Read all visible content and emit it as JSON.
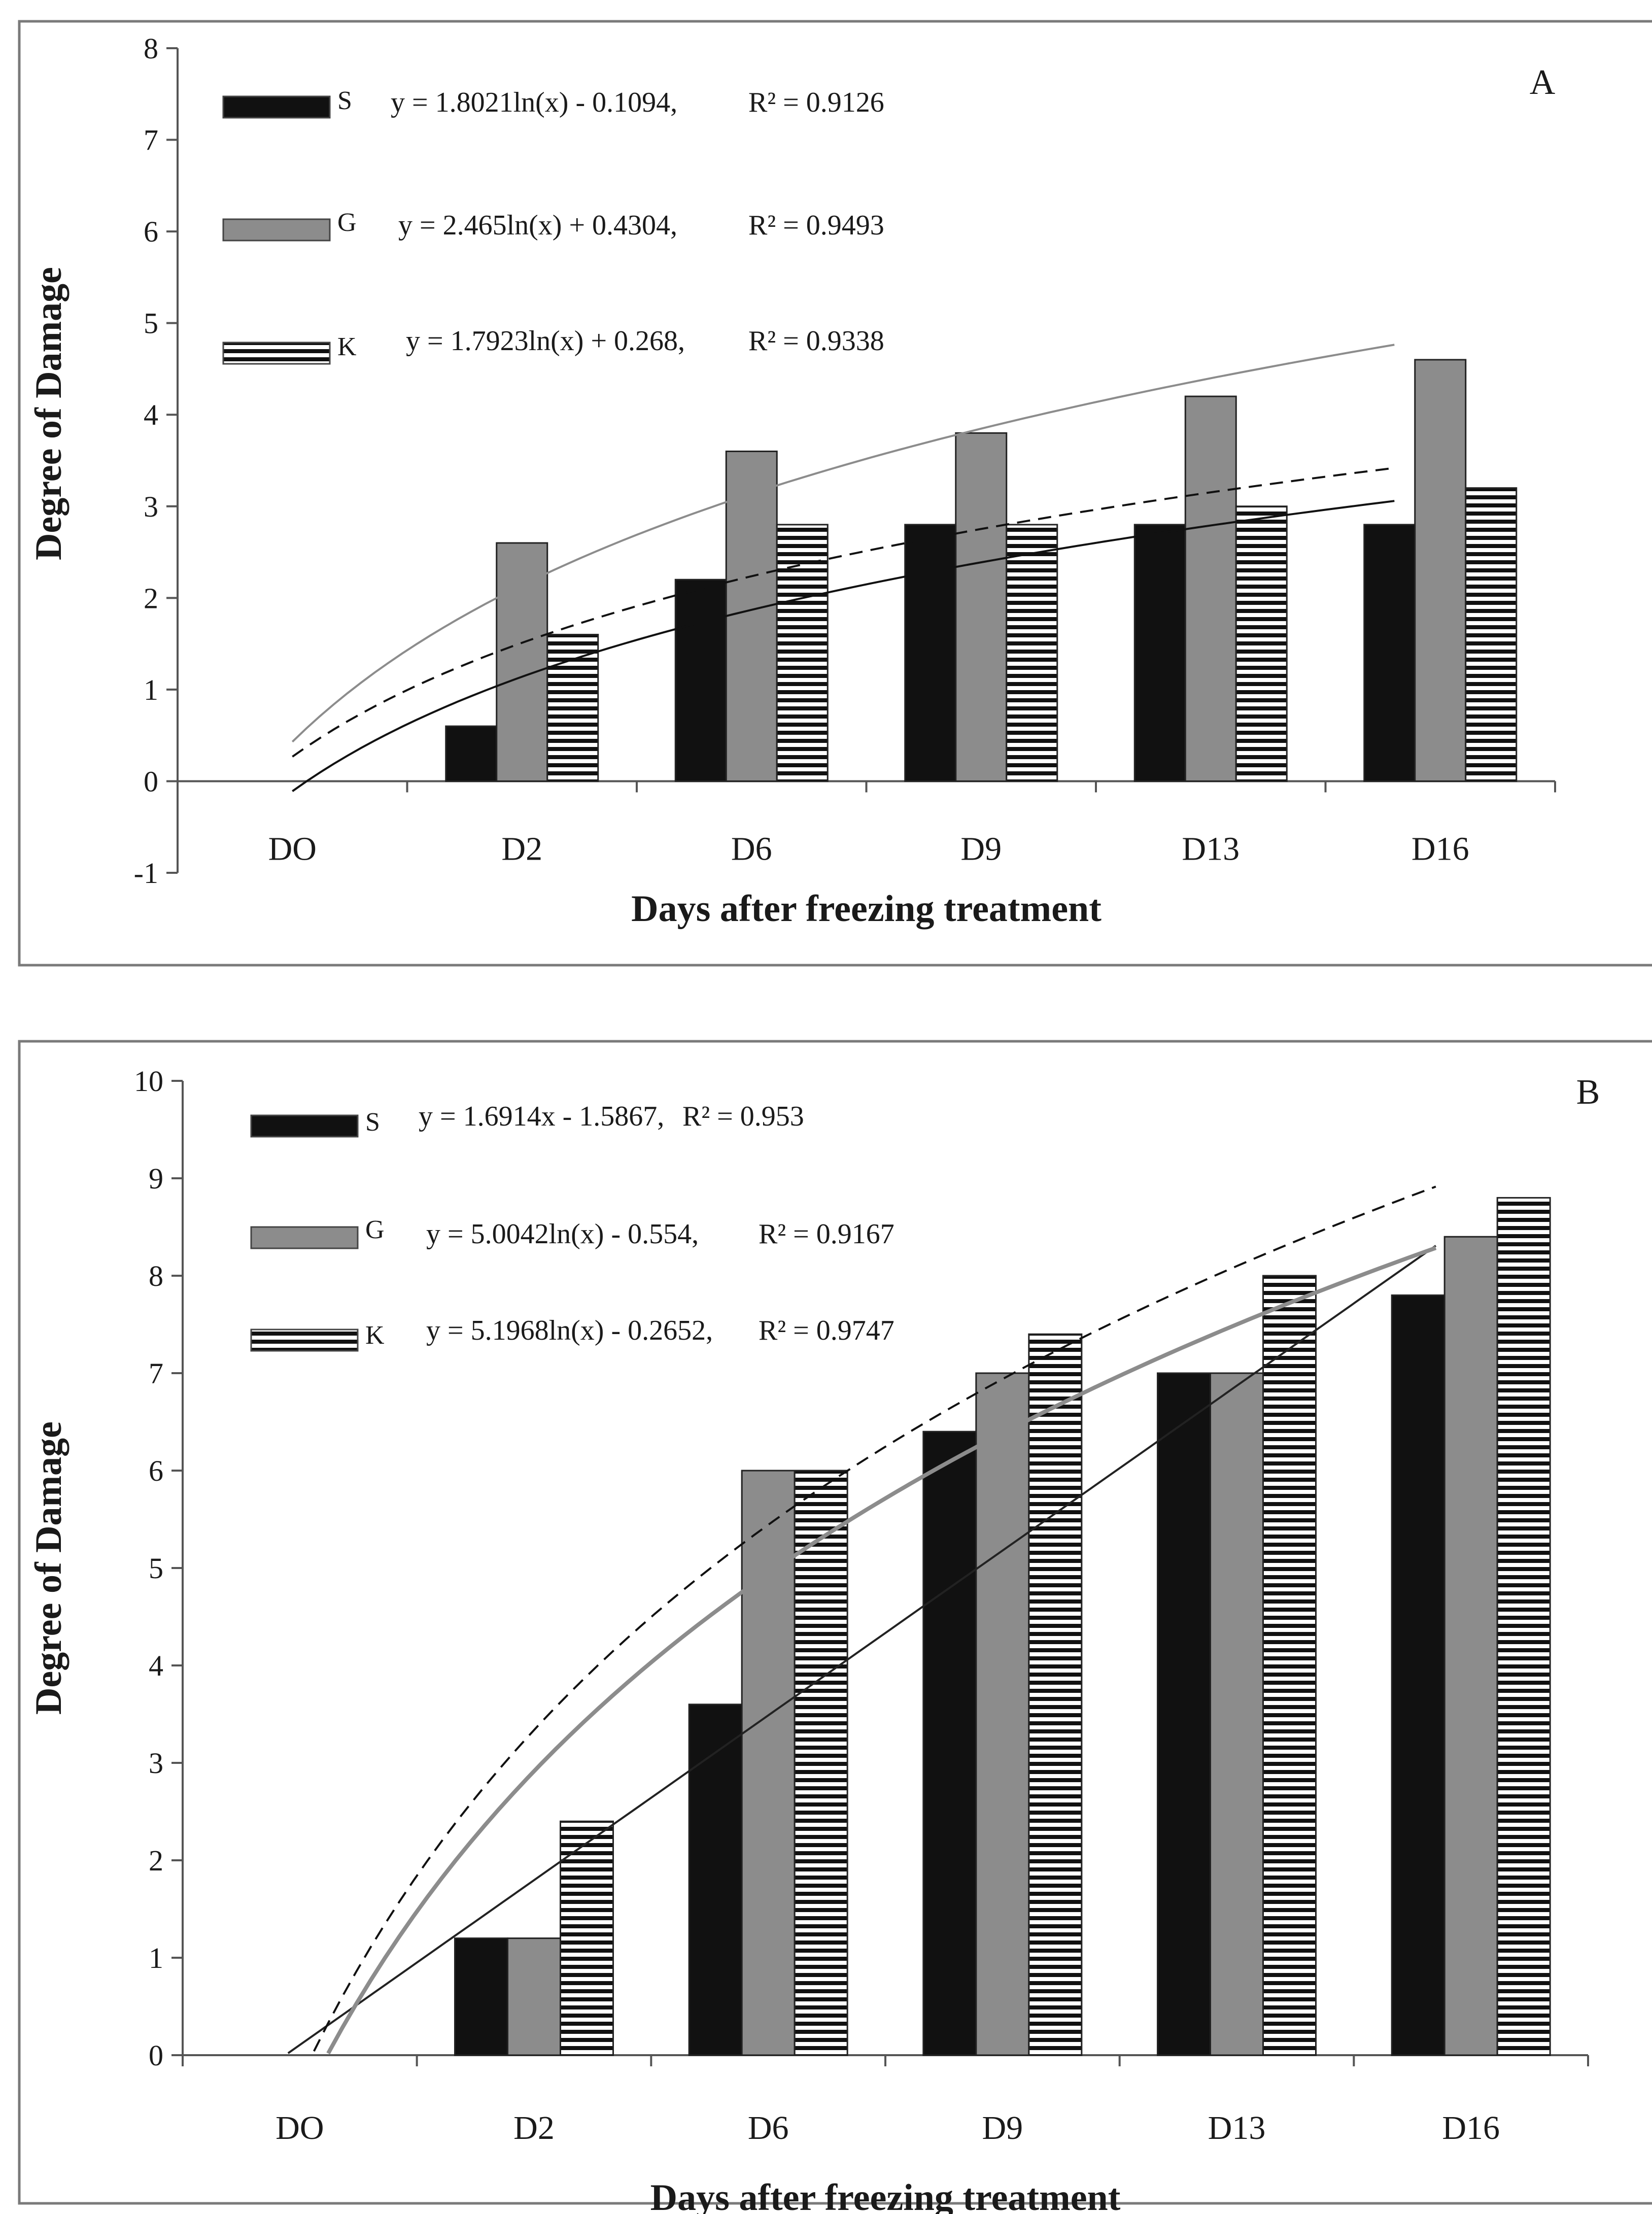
{
  "chart_data": [
    {
      "type": "bar",
      "panel_label": "A",
      "categories": [
        "DO",
        "D2",
        "D6",
        "D9",
        "D13",
        "D16"
      ],
      "series": [
        {
          "name": "S",
          "values": [
            0,
            0.6,
            2.2,
            2.8,
            2.8,
            2.8
          ],
          "fill": "solid",
          "color": "#111111"
        },
        {
          "name": "G",
          "values": [
            0,
            2.6,
            3.6,
            3.8,
            4.2,
            4.6
          ],
          "fill": "solid",
          "color": "#8c8c8c"
        },
        {
          "name": "K",
          "values": [
            0,
            1.6,
            2.8,
            2.8,
            3.0,
            3.2
          ],
          "fill": "horizontal-stripes",
          "color": "#111111"
        }
      ],
      "trendlines": [
        {
          "series": "S",
          "model": "log",
          "a": 1.8021,
          "b": -0.1094,
          "equation": "y = 1.8021ln(x) - 0.1094,",
          "r2_label": "R² = 0.9126",
          "style": "solid",
          "color": "#111111"
        },
        {
          "series": "G",
          "model": "log",
          "a": 2.465,
          "b": 0.4304,
          "equation": "y = 2.465ln(x) + 0.4304,",
          "r2_label": "R² = 0.9493",
          "style": "solid",
          "color": "#8c8c8c"
        },
        {
          "series": "K",
          "model": "log",
          "a": 1.7923,
          "b": 0.268,
          "equation": "y = 1.7923ln(x) + 0.268,",
          "r2_label": "R² = 0.9338",
          "style": "dashed",
          "color": "#111111"
        }
      ],
      "title": "",
      "xlabel": "Days after freezing treatment",
      "ylabel": "Degree of Damage",
      "ylim": [
        -1,
        8
      ],
      "yticks": [
        "-1",
        "0",
        "1",
        "2",
        "3",
        "4",
        "5",
        "6",
        "7",
        "8"
      ],
      "grid": false,
      "legend": "top-left"
    },
    {
      "type": "bar",
      "panel_label": "B",
      "categories": [
        "DO",
        "D2",
        "D6",
        "D9",
        "D13",
        "D16"
      ],
      "series": [
        {
          "name": "S",
          "values": [
            0,
            1.2,
            3.6,
            6.4,
            7.0,
            7.8
          ],
          "fill": "solid",
          "color": "#111111"
        },
        {
          "name": "G",
          "values": [
            0,
            1.2,
            6.0,
            7.0,
            7.0,
            8.4
          ],
          "fill": "solid",
          "color": "#8c8c8c"
        },
        {
          "name": "K",
          "values": [
            0,
            2.4,
            6.0,
            7.4,
            8.0,
            8.8
          ],
          "fill": "horizontal-stripes",
          "color": "#111111"
        }
      ],
      "trendlines": [
        {
          "series": "S",
          "model": "linear",
          "a": 1.6914,
          "b": -1.5867,
          "equation": "y = 1.6914x - 1.5867,",
          "r2_label": "R² = 0.953",
          "style": "solid",
          "color": "#222222"
        },
        {
          "series": "G",
          "model": "log",
          "a": 5.0042,
          "b": -0.554,
          "equation": "y = 5.0042ln(x) - 0.554,",
          "r2_label": "R² = 0.9167",
          "style": "solid",
          "color": "#8c8c8c"
        },
        {
          "series": "K",
          "model": "log",
          "a": 5.1968,
          "b": -0.2652,
          "equation": "y = 5.1968ln(x) - 0.2652,",
          "r2_label": "R² = 0.9747",
          "style": "dashed",
          "color": "#111111"
        }
      ],
      "title": "",
      "xlabel": "Days after freezing treatment",
      "ylabel": "Degree of Damage",
      "ylim": [
        0,
        10
      ],
      "yticks": [
        "0",
        "1",
        "2",
        "3",
        "4",
        "5",
        "6",
        "7",
        "8",
        "9",
        "10"
      ],
      "grid": false,
      "legend": "top-left"
    }
  ]
}
